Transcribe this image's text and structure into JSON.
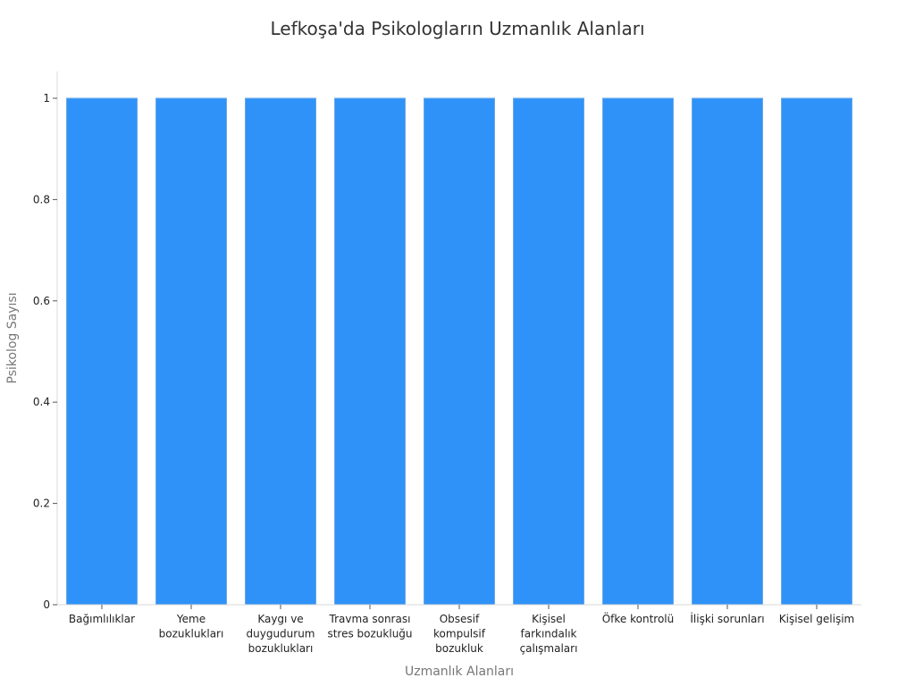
{
  "colors": {
    "bar": "#2f92f8",
    "bar_edge": "#6aa8e8",
    "axis": "#d9d9d9",
    "tick_text": "#222222",
    "label_text": "#777777",
    "title_text": "#333333"
  },
  "chart_data": {
    "type": "bar",
    "title": "Lefkoşa'da Psikologların Uzmanlık Alanları",
    "xlabel": "Uzmanlık Alanları",
    "ylabel": "Psikolog Sayısı",
    "ylim": [
      0,
      1.05
    ],
    "yticks": [
      0,
      0.2,
      0.4,
      0.6,
      0.8,
      1
    ],
    "ytick_labels": [
      "0",
      "0.2",
      "0.4",
      "0.6",
      "0.8",
      "1"
    ],
    "grid": false,
    "categories": [
      "Bağımlılıklar",
      "Yeme bozuklukları",
      "Kaygı ve duygudurum bozuklukları",
      "Travma sonrası stres bozukluğu",
      "Obsesif kompulsif bozukluk",
      "Kişisel farkındalık çalışmaları",
      "Öfke kontrolü",
      "İlişki sorunları",
      "Kişisel gelişim"
    ],
    "category_lines": [
      [
        "Bağımlılıklar"
      ],
      [
        "Yeme",
        "bozuklukları"
      ],
      [
        "Kaygı ve",
        "duygudurum",
        "bozuklukları"
      ],
      [
        "Travma sonrası",
        "stres bozukluğu"
      ],
      [
        "Obsesif",
        "kompulsif",
        "bozukluk"
      ],
      [
        "Kişisel",
        "farkındalık",
        "çalışmaları"
      ],
      [
        "Öfke kontrolü"
      ],
      [
        "İlişki sorunları"
      ],
      [
        "Kişisel gelişim"
      ]
    ],
    "values": [
      1,
      1,
      1,
      1,
      1,
      1,
      1,
      1,
      1
    ]
  }
}
